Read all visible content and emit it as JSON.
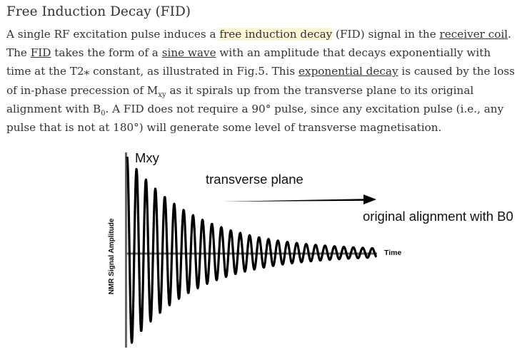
{
  "article": {
    "title": "Free Induction Decay (FID)",
    "paragraph": {
      "s1a": "A single RF excitation pulse induces a ",
      "s1_highlight": "free induction decay",
      "s1b": " (FID) signal in the ",
      "s1_link": "receiver coil",
      "s1c": ". The ",
      "s2_link1": "FID",
      "s2a": " takes the form of a ",
      "s2_link2": "sine wave",
      "s2b": " with an amplitude that decays exponentially with time at the T2⁎ constant, as illustrated in Fig.5. This ",
      "s3_link": "exponential decay",
      "s3a": " is caused by the loss of in-phase precession of M",
      "s3_sub": "xy",
      "s3b": " as it spirals up from the transverse plane to its original alignment with B",
      "s3_sub2": "0",
      "s3c": ". A FID does not require a 90° pulse, since any excitation pulse (i.e., any pulse that is not at 180°) will generate some level of transverse magnetisation."
    }
  },
  "figure": {
    "label_mxy": "Mxy",
    "label_transverse": "transverse plane",
    "label_original": "original alignment with B0",
    "x_label": "Time",
    "y_label": "NMR Signal Amplitude",
    "colors": {
      "signal": "#000000",
      "axis": "#666666"
    }
  }
}
